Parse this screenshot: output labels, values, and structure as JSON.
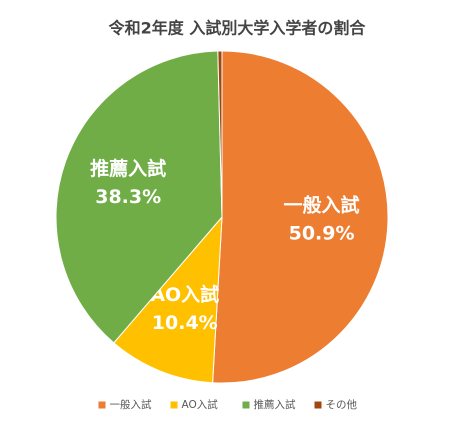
{
  "chart_data": {
    "type": "pie",
    "title": "令和2年度 入試別大学入学者の割合",
    "categories": [
      "一般入試",
      "AO入試",
      "推薦入試",
      "その他"
    ],
    "values": [
      50.9,
      10.4,
      38.3,
      0.4
    ],
    "value_labels": [
      "50.9%",
      "10.4%",
      "38.3%",
      null
    ],
    "colors": [
      "#ed7d31",
      "#ffc000",
      "#70ad47",
      "#9e480e"
    ],
    "legend": "bottom"
  }
}
